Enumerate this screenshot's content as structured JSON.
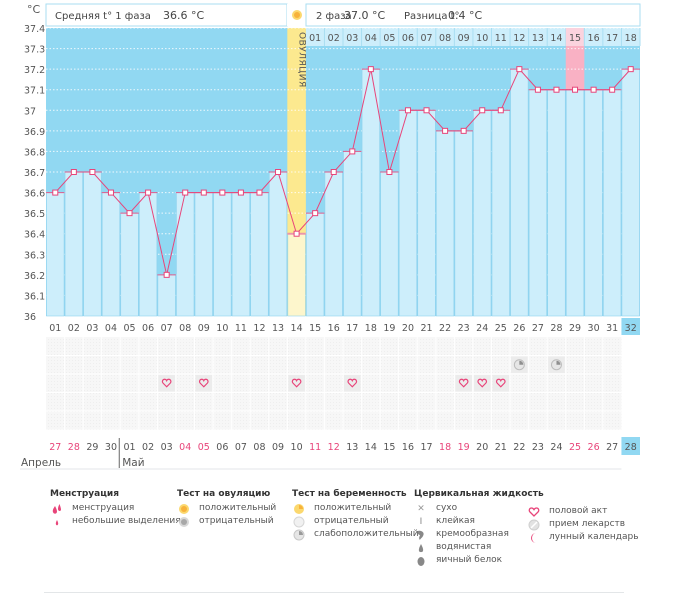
{
  "header": {
    "unit": "°C",
    "phase1_label": "Средняя t° 1 фаза",
    "phase1_value": "36.6 °C",
    "phase2_label": "2 фаза",
    "phase2_value": "37.0 °C",
    "diff_label": "Разница t°",
    "diff_value": "0.4 °C",
    "ovulation_label": "ОВУЛЯЦИЯ"
  },
  "colors": {
    "bg_band": "#91d8f2",
    "bar": "#cdeefb",
    "ovulation_band": "#fce98f",
    "ovulation_bar": "#fdf6cc",
    "line": "#e8457a",
    "highlight_pink": "#f9b1c4",
    "weekend_red": "#e8457a",
    "current_day": "#91d8f2"
  },
  "chart_data": {
    "type": "line",
    "title": "",
    "xlabel": "",
    "ylabel": "°C",
    "ylim": [
      36,
      37.4
    ],
    "yticks": [
      "36",
      "36.1",
      "36.2",
      "36.3",
      "36.4",
      "36.5",
      "36.6",
      "36.7",
      "36.8",
      "36.9",
      "37",
      "37.1",
      "37.2",
      "37.3",
      "37.4"
    ],
    "categories": [
      "01",
      "02",
      "03",
      "04",
      "05",
      "06",
      "07",
      "08",
      "09",
      "10",
      "11",
      "12",
      "13",
      "14",
      "15",
      "16",
      "17",
      "18",
      "19",
      "20",
      "21",
      "22",
      "23",
      "24",
      "25",
      "26",
      "27",
      "28",
      "29",
      "30",
      "31",
      "32"
    ],
    "series": [
      {
        "name": "Базальная температура",
        "values": [
          36.6,
          36.7,
          36.7,
          36.6,
          36.5,
          36.6,
          36.2,
          36.6,
          36.6,
          36.6,
          36.6,
          36.6,
          36.7,
          36.4,
          36.5,
          36.7,
          36.8,
          37.2,
          36.7,
          37.0,
          37.0,
          36.9,
          36.9,
          37.0,
          37.0,
          37.2,
          37.1,
          37.1,
          37.1,
          37.1,
          37.1,
          37.2
        ]
      }
    ],
    "ovulation_day": 14,
    "current_day": 32,
    "phase2_labels": [
      "01",
      "02",
      "03",
      "04",
      "05",
      "06",
      "07",
      "08",
      "09",
      "10",
      "11",
      "12",
      "13",
      "14",
      "15",
      "16",
      "17",
      "18"
    ],
    "phase2_start_day": 15,
    "phase2_highlight_label": "15",
    "grid": true,
    "legend": "none"
  },
  "marks": {
    "heart_days": [
      7,
      9,
      14,
      17,
      23,
      24,
      25
    ],
    "pregnancy_weak_days": [
      26,
      28
    ]
  },
  "calendar": {
    "dates": [
      "27",
      "28",
      "29",
      "30",
      "01",
      "02",
      "03",
      "04",
      "05",
      "06",
      "07",
      "08",
      "09",
      "10",
      "11",
      "12",
      "13",
      "14",
      "15",
      "16",
      "17",
      "18",
      "19",
      "20",
      "21",
      "22",
      "23",
      "24",
      "25",
      "26",
      "27",
      "28"
    ],
    "red": [
      true,
      true,
      false,
      false,
      false,
      false,
      false,
      true,
      true,
      false,
      false,
      false,
      false,
      false,
      true,
      true,
      false,
      false,
      false,
      false,
      false,
      true,
      true,
      false,
      false,
      false,
      false,
      false,
      true,
      true,
      false,
      false
    ],
    "months": [
      {
        "label": "Апрель",
        "start_index": 0
      },
      {
        "label": "Май",
        "start_index": 4
      }
    ]
  },
  "legend": {
    "menstruation": {
      "title": "Менструация",
      "items": [
        "менструация",
        "небольшие выделения"
      ]
    },
    "ovulation_test": {
      "title": "Тест на овуляцию",
      "items": [
        "положительный",
        "отрицательный"
      ]
    },
    "pregnancy_test": {
      "title": "Тест на беременность",
      "items": [
        "положительный",
        "отрицательный",
        "слабоположительный"
      ]
    },
    "cervical": {
      "title": "Цервикальная жидкость",
      "items": [
        "сухо",
        "клейкая",
        "кремообразная",
        "водянистая",
        "яичный белок"
      ]
    },
    "other": {
      "items": [
        "половой акт",
        "прием лекарств",
        "лунный календарь"
      ]
    }
  }
}
